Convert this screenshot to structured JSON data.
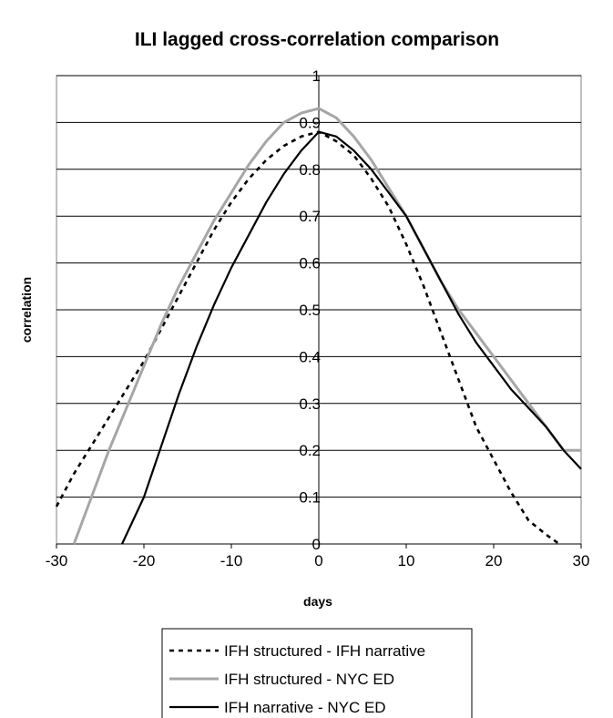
{
  "chart_data": {
    "type": "line",
    "title": "ILI lagged cross-correlation comparison",
    "xlabel": "days",
    "ylabel": "correlation",
    "xlim": [
      -30,
      30
    ],
    "ylim": [
      0,
      1
    ],
    "xticks": [
      "-30",
      "-20",
      "-10",
      "0",
      "10",
      "20",
      "30"
    ],
    "yticks": [
      "0",
      "0.1",
      "0.2",
      "0.3",
      "0.4",
      "0.5",
      "0.6",
      "0.7",
      "0.8",
      "0.9",
      "1"
    ],
    "grid": "horizontal",
    "legend_position": "bottom",
    "series": [
      {
        "name": "IFH structured - IFH narrative",
        "style": "dotted",
        "color": "#000000",
        "x": [
          -30,
          -28,
          -26,
          -24,
          -22,
          -20,
          -18,
          -16,
          -14,
          -12,
          -10,
          -8,
          -6,
          -4,
          -2,
          0,
          2,
          4,
          6,
          8,
          10,
          12,
          14,
          16,
          18,
          20,
          22,
          24,
          26,
          27.5
        ],
        "y": [
          0.08,
          0.15,
          0.21,
          0.27,
          0.33,
          0.39,
          0.46,
          0.53,
          0.6,
          0.67,
          0.73,
          0.78,
          0.82,
          0.85,
          0.87,
          0.88,
          0.86,
          0.83,
          0.78,
          0.72,
          0.64,
          0.55,
          0.45,
          0.35,
          0.25,
          0.18,
          0.11,
          0.05,
          0.02,
          0.0
        ]
      },
      {
        "name": "IFH structured - NYC ED",
        "style": "solid",
        "color": "#a6a6a6",
        "x": [
          -28,
          -26,
          -24,
          -22,
          -20,
          -18,
          -16,
          -14,
          -12,
          -10,
          -8,
          -6,
          -4,
          -2,
          0,
          2,
          4,
          6,
          8,
          10,
          12,
          14,
          16,
          18,
          20,
          22,
          24,
          26,
          28,
          30
        ],
        "y": [
          0.0,
          0.1,
          0.2,
          0.29,
          0.38,
          0.47,
          0.55,
          0.62,
          0.69,
          0.75,
          0.81,
          0.86,
          0.9,
          0.92,
          0.93,
          0.91,
          0.87,
          0.82,
          0.76,
          0.7,
          0.63,
          0.56,
          0.5,
          0.45,
          0.4,
          0.35,
          0.3,
          0.25,
          0.2,
          0.2
        ]
      },
      {
        "name": "IFH narrative - NYC ED",
        "style": "solid",
        "color": "#000000",
        "x": [
          -22.5,
          -20,
          -18,
          -16,
          -14,
          -12,
          -10,
          -8,
          -6,
          -4,
          -2,
          0,
          2,
          4,
          6,
          8,
          10,
          12,
          14,
          16,
          18,
          20,
          22,
          24,
          26,
          28,
          30
        ],
        "y": [
          0.0,
          0.1,
          0.21,
          0.32,
          0.42,
          0.51,
          0.59,
          0.66,
          0.73,
          0.79,
          0.84,
          0.88,
          0.87,
          0.84,
          0.8,
          0.75,
          0.7,
          0.63,
          0.56,
          0.49,
          0.43,
          0.38,
          0.33,
          0.29,
          0.25,
          0.2,
          0.16
        ]
      }
    ]
  }
}
